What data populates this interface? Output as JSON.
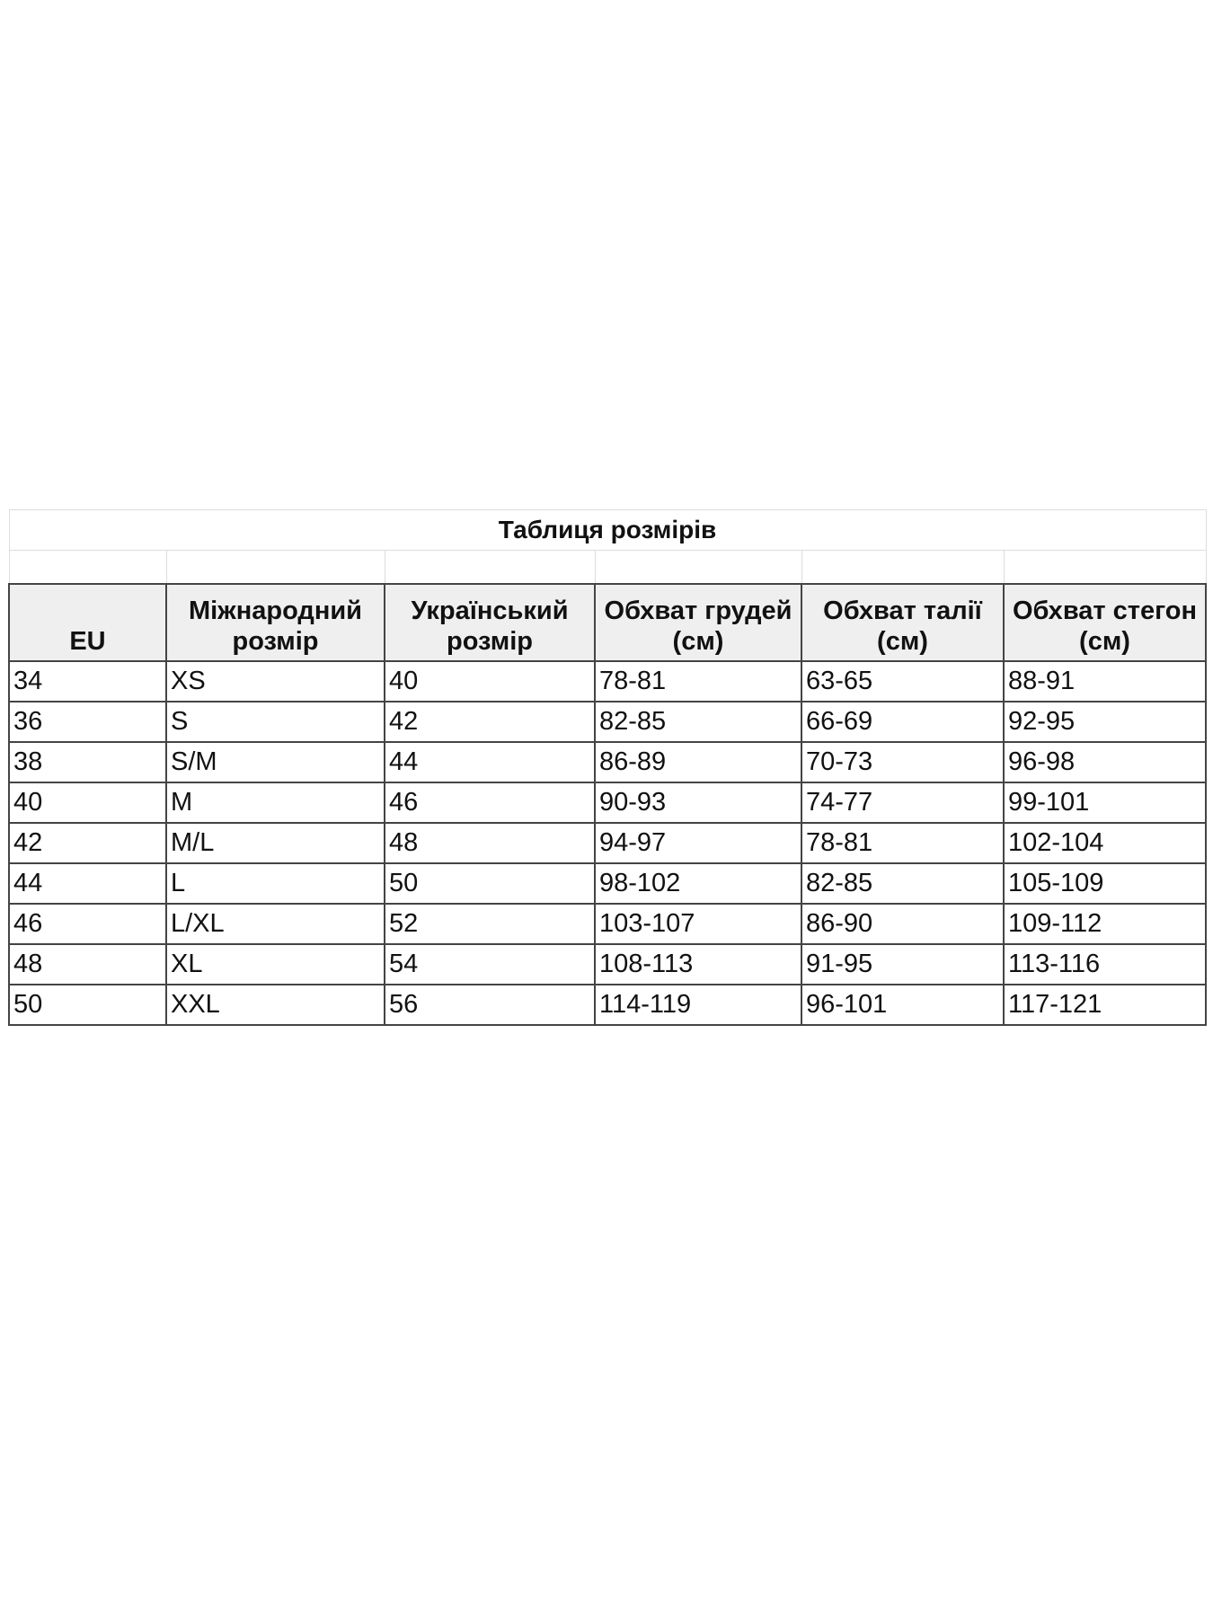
{
  "title": "Таблиця розмірів",
  "headers": [
    "EU",
    "Міжнародний розмір",
    "Український розмір",
    "Обхват грудей (см)",
    "Обхват талії (см)",
    "Обхват стегон (см)"
  ],
  "rows": [
    [
      "34",
      "XS",
      "40",
      "78-81",
      "63-65",
      "88-91"
    ],
    [
      "36",
      "S",
      "42",
      "82-85",
      "66-69",
      "92-95"
    ],
    [
      "38",
      "S/M",
      "44",
      "86-89",
      "70-73",
      "96-98"
    ],
    [
      "40",
      "M",
      "46",
      "90-93",
      "74-77",
      "99-101"
    ],
    [
      "42",
      "M/L",
      "48",
      "94-97",
      "78-81",
      "102-104"
    ],
    [
      "44",
      "L",
      "50",
      "98-102",
      "82-85",
      "105-109"
    ],
    [
      "46",
      "L/XL",
      "52",
      "103-107",
      "86-90",
      "109-112"
    ],
    [
      "48",
      "XL",
      "54",
      "108-113",
      "91-95",
      "113-116"
    ],
    [
      "50",
      "XXL",
      "56",
      "114-119",
      "96-101",
      "117-121"
    ]
  ]
}
